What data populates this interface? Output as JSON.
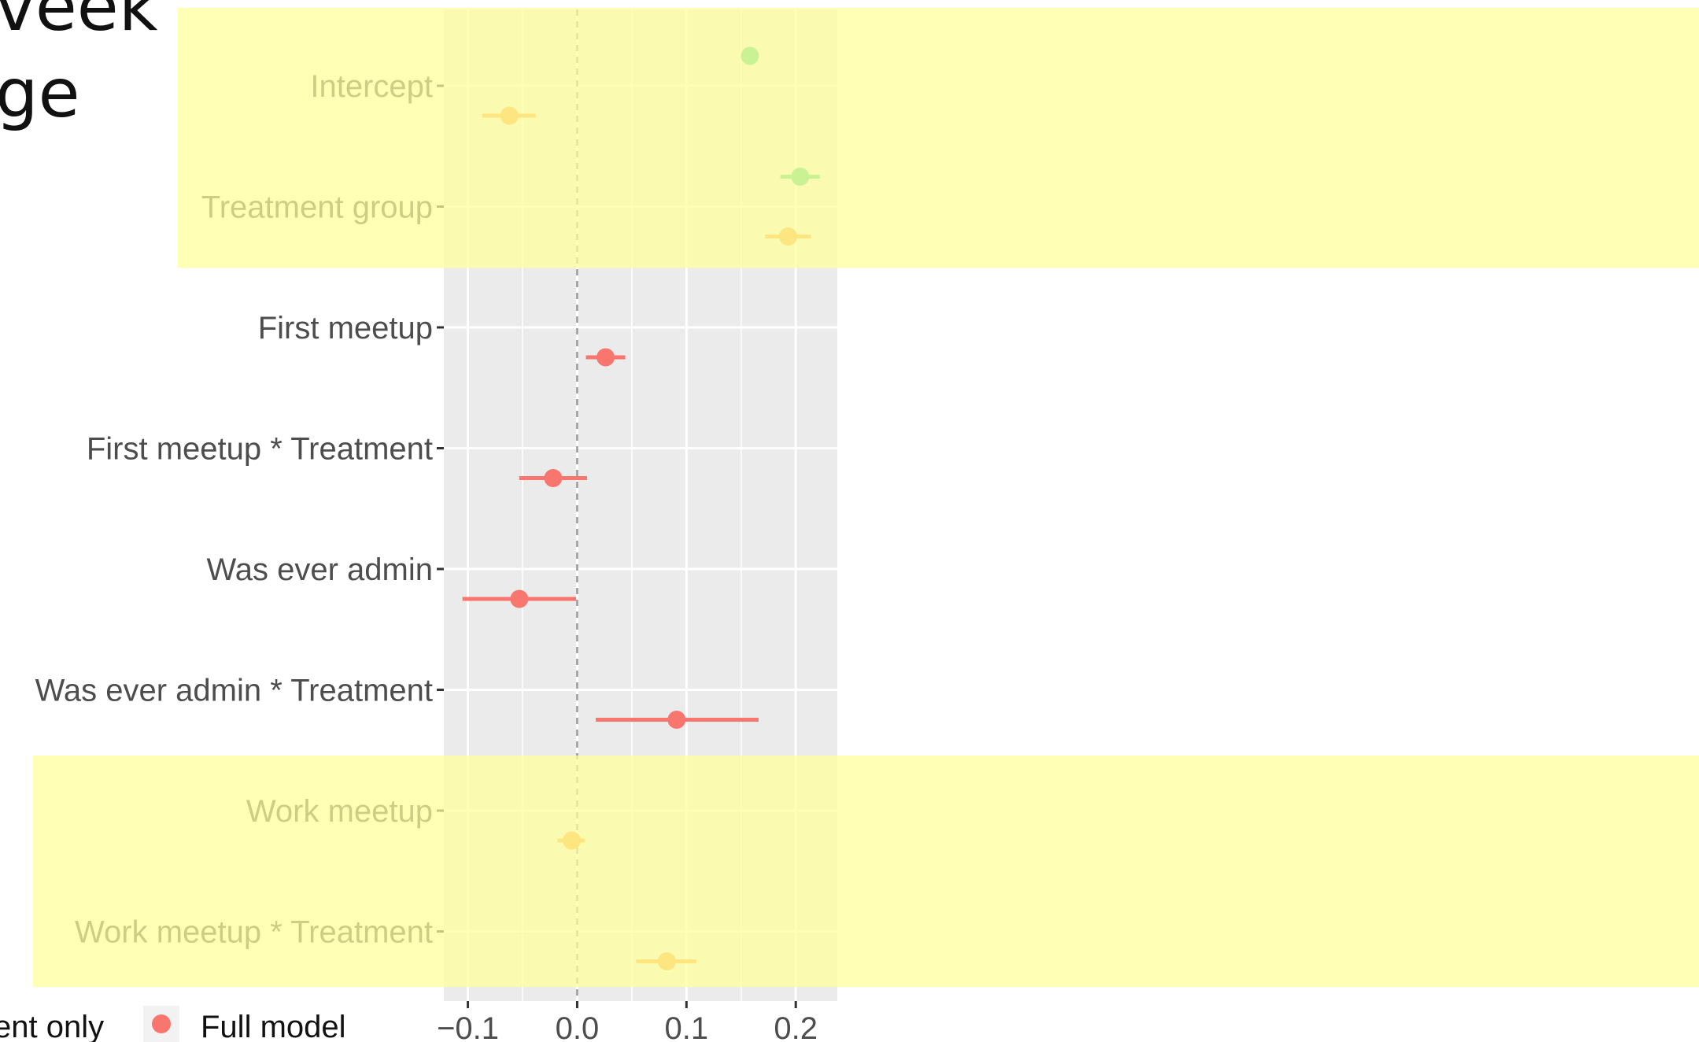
{
  "slide": {
    "title_fragments": [
      "veek",
      "ge"
    ]
  },
  "colors": {
    "panel_background": "#EBEBEB",
    "gridline": "#FFFFFF",
    "highlight": "#FFFF99",
    "series_treatment_only": "#3FCF8E",
    "series_treatment_with_work": "#F7A043",
    "series_full_model": "#F8766D",
    "zero_line": "#999999",
    "tick_label": "#4D4D4D"
  },
  "chart_data": {
    "type": "coefficient-plot",
    "orientation": "horizontal",
    "terms": [
      "Intercept",
      "Treatment group",
      "First meetup",
      "First meetup * Treatment",
      "Was ever admin",
      "Was ever admin * Treatment",
      "Work meetup",
      "Work meetup * Treatment"
    ],
    "x_ticks": [
      -0.1,
      0.0,
      0.1,
      0.2
    ],
    "x_tick_labels": [
      "−0.1",
      "0.0",
      "0.1",
      "0.2"
    ],
    "xlim": [
      -0.122,
      0.238
    ],
    "reference_line": 0.0,
    "grid": true,
    "legend": {
      "position": "bottom-left",
      "entries": [
        {
          "label": "ent only",
          "color": "#3FCF8E"
        },
        {
          "label": "Full model",
          "color": "#F8766D"
        }
      ]
    },
    "highlighted_terms": [
      [
        "Intercept",
        "Treatment group"
      ],
      [
        "Work meetup",
        "Work meetup * Treatment"
      ]
    ],
    "series": [
      {
        "color": "#3FCF8E",
        "points": [
          {
            "term": "Intercept",
            "estimate": 0.158,
            "low": 0.158,
            "high": 0.158
          },
          {
            "term": "Treatment group",
            "estimate": 0.204,
            "low": 0.186,
            "high": 0.222
          }
        ]
      },
      {
        "color": "#F7A043",
        "points": [
          {
            "term": "Intercept",
            "estimate": -0.062,
            "low": -0.087,
            "high": -0.038
          },
          {
            "term": "Treatment group",
            "estimate": 0.193,
            "low": 0.172,
            "high": 0.214
          },
          {
            "term": "Work meetup",
            "estimate": -0.005,
            "low": -0.018,
            "high": 0.007
          },
          {
            "term": "Work meetup * Treatment",
            "estimate": 0.082,
            "low": 0.054,
            "high": 0.109
          }
        ]
      },
      {
        "name": "Full model",
        "color": "#F8766D",
        "points": [
          {
            "term": "First meetup",
            "estimate": 0.026,
            "low": 0.008,
            "high": 0.044
          },
          {
            "term": "First meetup * Treatment",
            "estimate": -0.022,
            "low": -0.053,
            "high": 0.009
          },
          {
            "term": "Was ever admin",
            "estimate": -0.053,
            "low": -0.105,
            "high": -0.001
          },
          {
            "term": "Was ever admin * Treatment",
            "estimate": 0.091,
            "low": 0.017,
            "high": 0.166
          }
        ]
      }
    ]
  }
}
